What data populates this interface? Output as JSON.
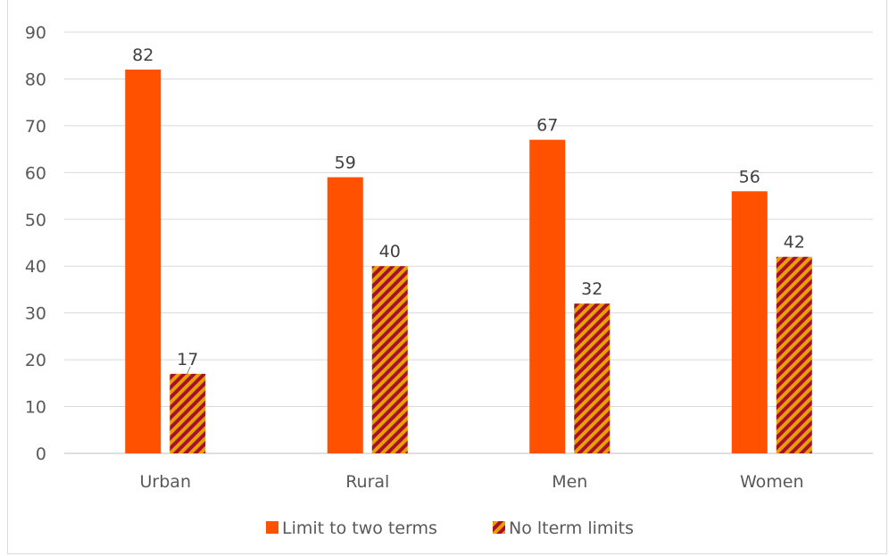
{
  "chart_data": {
    "type": "bar",
    "categories": [
      "Urban",
      "Rural",
      "Men",
      "Women"
    ],
    "series": [
      {
        "name": "Limit to two terms",
        "values": [
          82,
          59,
          67,
          56
        ],
        "color": "#ff5100",
        "pattern": "solid"
      },
      {
        "name": "No lterm limits",
        "values": [
          17,
          40,
          32,
          42
        ],
        "color": "#e6a000",
        "stripe_color": "#a8102a",
        "pattern": "diagonal-stripes"
      }
    ],
    "ylim": [
      0,
      90
    ],
    "yticks": [
      0,
      10,
      20,
      30,
      40,
      50,
      60,
      70,
      80,
      90
    ],
    "grid": true,
    "legend_position": "bottom",
    "title": "",
    "xlabel": "",
    "ylabel": ""
  }
}
